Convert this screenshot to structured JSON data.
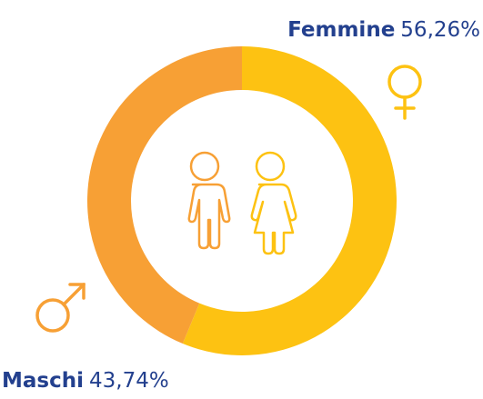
{
  "chart_data": {
    "type": "pie",
    "donut": true,
    "categories": [
      "Femmine",
      "Maschi"
    ],
    "values": [
      56.26,
      43.74
    ],
    "value_labels": [
      "56,26%",
      "43,74%"
    ],
    "colors": [
      "#fdc212",
      "#f7a035"
    ]
  }
}
